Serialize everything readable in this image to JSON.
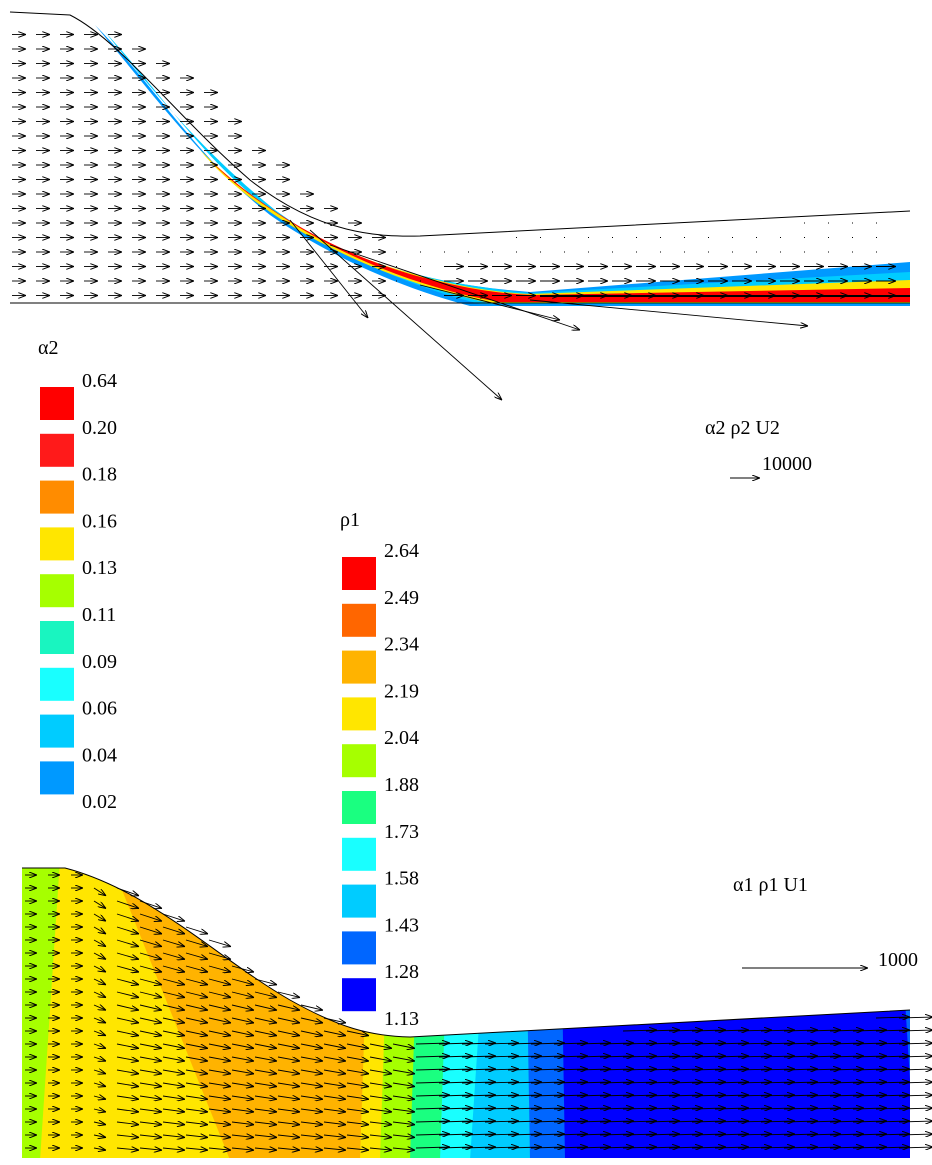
{
  "legends": [
    {
      "title": "α2",
      "levels": [
        "0.64",
        "0.20",
        "0.18",
        "0.16",
        "0.13",
        "0.11",
        "0.09",
        "0.06",
        "0.04",
        "0.02"
      ],
      "colors": [
        "#ff0000",
        "#ff1a1a",
        "#ff8c00",
        "#ffe600",
        "#a6ff00",
        "#19f5c0",
        "#19ffff",
        "#00ccff",
        "#0099ff"
      ]
    },
    {
      "title": "ρ1",
      "levels": [
        "2.64",
        "2.49",
        "2.34",
        "2.19",
        "2.04",
        "1.88",
        "1.73",
        "1.58",
        "1.43",
        "1.28",
        "1.13"
      ],
      "colors": [
        "#ff0000",
        "#ff6600",
        "#ffb300",
        "#ffe600",
        "#a6ff00",
        "#1aff80",
        "#19ffff",
        "#00ccff",
        "#0066ff",
        "#0000ff"
      ]
    }
  ],
  "vector_scales": [
    {
      "title": "α2 ρ2  U2",
      "label": "10000"
    },
    {
      "title": "α1 ρ1  U1",
      "label": "1000"
    }
  ]
}
